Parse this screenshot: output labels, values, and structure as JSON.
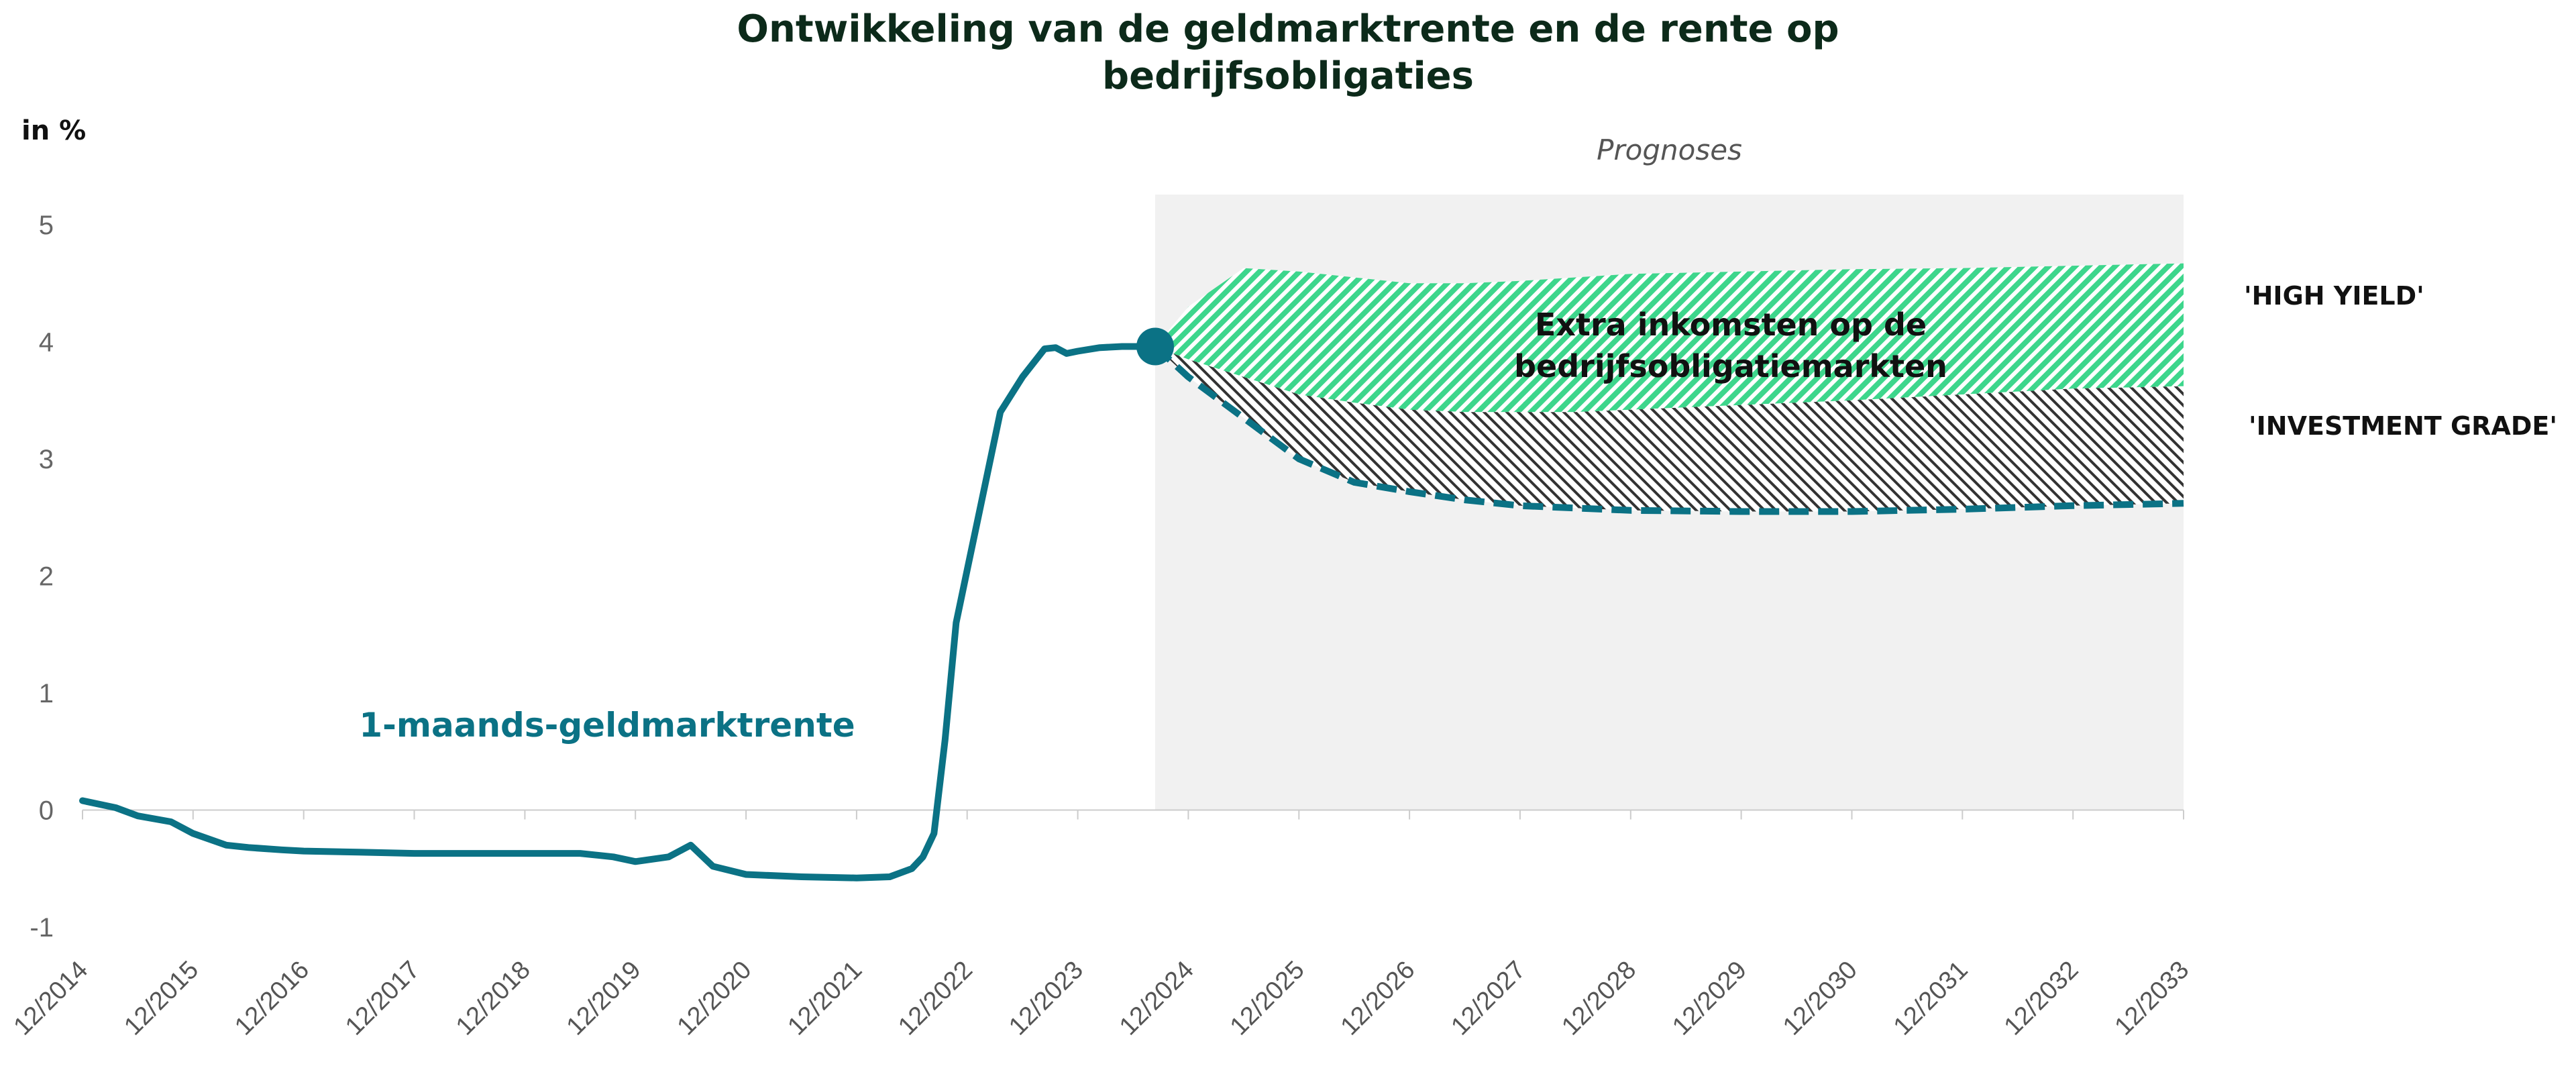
{
  "chart_data": {
    "type": "line",
    "title_lines": [
      "Ontwikkeling van de geldmarktrente en de rente op",
      "bedrijfsobligaties"
    ],
    "ylabel": "in %",
    "ylim": [
      -1,
      5
    ],
    "yticks": [
      "5",
      "4",
      "3",
      "2",
      "1",
      "0",
      "-1"
    ],
    "categories": [
      "12/2014",
      "12/2015",
      "12/2016",
      "12/2017",
      "12/2018",
      "12/2019",
      "12/2020",
      "12/2021",
      "12/2022",
      "12/2023",
      "12/2024",
      "12/2025",
      "12/2026",
      "12/2027",
      "12/2028",
      "12/2029",
      "12/2030",
      "12/2031",
      "12/2032",
      "12/2033"
    ],
    "forecast_label": "Prognoses",
    "forecast_start_year": 2023.7,
    "series_label": "1-maands-geldmarktrente",
    "annotation_lines": [
      "Extra inkomsten op de",
      "bedrijfsobligatiemarkten"
    ],
    "high_yield_label": "'HIGH YIELD'",
    "investment_grade_label": "'INVESTMENT GRADE'",
    "colors": {
      "line": "#0b7285",
      "high_yield": "#3dd68c",
      "investment_grade": "#333333",
      "forecast_bg": "#f1f1f1",
      "title": "#0c2a1a"
    },
    "series": [
      {
        "key": "geldmarkt",
        "x": [
          2014.0,
          2014.3,
          2014.5,
          2014.8,
          2015.0,
          2015.3,
          2015.5,
          2015.8,
          2016.0,
          2016.5,
          2017.0,
          2017.5,
          2018.0,
          2018.5,
          2018.8,
          2019.0,
          2019.3,
          2019.5,
          2019.7,
          2020.0,
          2020.5,
          2021.0,
          2021.3,
          2021.5,
          2021.6,
          2021.7,
          2021.8,
          2021.9,
          2022.0,
          2022.1,
          2022.2,
          2022.3,
          2022.5,
          2022.7,
          2022.8,
          2022.9,
          2023.0,
          2023.2,
          2023.4,
          2023.5,
          2023.7
        ],
        "y": [
          0.08,
          0.02,
          -0.05,
          -0.1,
          -0.2,
          -0.3,
          -0.32,
          -0.34,
          -0.35,
          -0.36,
          -0.37,
          -0.37,
          -0.37,
          -0.37,
          -0.4,
          -0.44,
          -0.4,
          -0.3,
          -0.48,
          -0.55,
          -0.57,
          -0.58,
          -0.57,
          -0.5,
          -0.4,
          -0.2,
          0.6,
          1.6,
          2.05,
          2.5,
          2.95,
          3.4,
          3.7,
          3.94,
          3.95,
          3.9,
          3.92,
          3.95,
          3.96,
          3.96,
          3.96
        ]
      },
      {
        "key": "investment_grade_forecast",
        "x": [
          2023.7,
          2024.0,
          2024.5,
          2025.0,
          2025.5,
          2026.0,
          2026.5,
          2027.0,
          2027.5,
          2028.0,
          2029.0,
          2030.0,
          2031.0,
          2032.0,
          2033.0
        ],
        "y": [
          3.96,
          3.7,
          3.35,
          3.0,
          2.8,
          2.72,
          2.65,
          2.6,
          2.58,
          2.56,
          2.55,
          2.55,
          2.57,
          2.6,
          2.62
        ]
      },
      {
        "key": "high_yield_upper",
        "x": [
          2023.7,
          2024.0,
          2024.5,
          2025.0,
          2025.5,
          2026.0,
          2026.5,
          2027.0,
          2027.5,
          2028.0,
          2029.0,
          2030.0,
          2031.0,
          2032.0,
          2033.0
        ],
        "y": [
          3.96,
          4.3,
          4.63,
          4.6,
          4.55,
          4.5,
          4.5,
          4.52,
          4.55,
          4.58,
          4.6,
          4.62,
          4.63,
          4.65,
          4.67
        ]
      },
      {
        "key": "high_yield_lower",
        "x": [
          2023.7,
          2024.0,
          2024.5,
          2025.0,
          2025.5,
          2026.0,
          2026.5,
          2027.0,
          2027.5,
          2028.0,
          2029.0,
          2030.0,
          2031.0,
          2032.0,
          2033.0
        ],
        "y": [
          3.96,
          3.85,
          3.7,
          3.55,
          3.48,
          3.42,
          3.4,
          3.4,
          3.4,
          3.42,
          3.46,
          3.5,
          3.55,
          3.6,
          3.62
        ]
      }
    ]
  }
}
